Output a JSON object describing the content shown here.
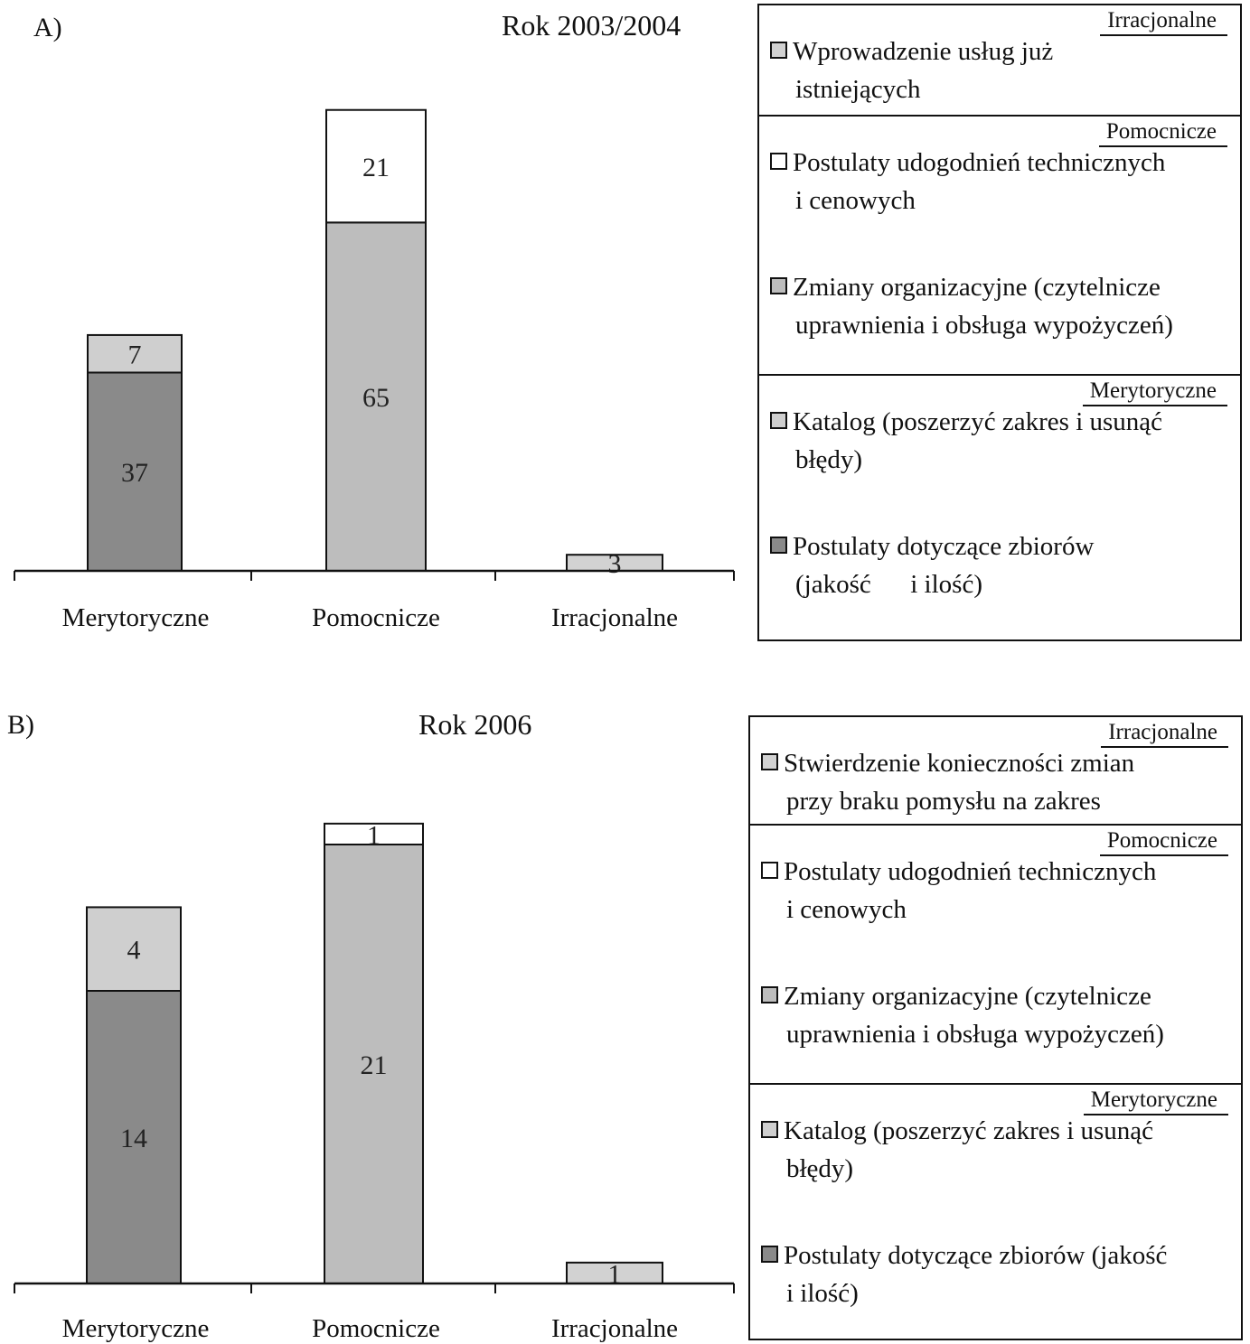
{
  "chart_data": [
    {
      "type": "bar",
      "stacked": true,
      "panel_label": "A)",
      "title": "Rok 2003/2004",
      "categories": [
        "Merytoryczne",
        "Pomocnicze",
        "Irracjonalne"
      ],
      "ylim": [
        0,
        90
      ],
      "grid": false,
      "legend_position": "right",
      "series": [
        {
          "name": "Postulaty dotyczące zbiorów (jakość i ilość)",
          "color": "#8a8a8a",
          "values": [
            37,
            null,
            null
          ]
        },
        {
          "name": "Katalog (poszerzyć zakres i usunąć błędy)",
          "color": "#cfcfcf",
          "values": [
            7,
            null,
            null
          ]
        },
        {
          "name": "Zmiany organizacyjne (czytelnicze uprawnienia i obsługa wypożyczeń)",
          "color": "#bdbdbd",
          "values": [
            null,
            65,
            null
          ]
        },
        {
          "name": "Postulaty udogodnień technicznych i cenowych",
          "color": "#ffffff",
          "values": [
            null,
            21,
            null
          ]
        },
        {
          "name": "Wprowadzenie usług już istniejących",
          "color": "#d2d2d2",
          "values": [
            null,
            null,
            3
          ]
        }
      ],
      "legend": [
        {
          "header": "Irracjonalne",
          "items": [
            {
              "lines": [
                "Wprowadzenie usług już",
                "istniejących"
              ],
              "color": "#d2d2d2"
            }
          ]
        },
        {
          "header": "Pomocnicze",
          "items": [
            {
              "lines": [
                "Postulaty udogodnień technicznych",
                "i cenowych"
              ],
              "color": "#ffffff"
            },
            {
              "lines": [
                "Zmiany organizacyjne (czytelnicze",
                "uprawnienia i obsługa wypożyczeń)"
              ],
              "color": "#bdbdbd"
            }
          ]
        },
        {
          "header": "Merytoryczne",
          "items": [
            {
              "lines": [
                "Katalog (poszerzyć zakres i usunąć",
                "błędy)"
              ],
              "color": "#cfcfcf"
            },
            {
              "lines": [
                "Postulaty dotyczące zbiorów",
                "(jakość      i ilość)"
              ],
              "color": "#8a8a8a"
            }
          ]
        }
      ]
    },
    {
      "type": "bar",
      "stacked": true,
      "panel_label": "B)",
      "title": "Rok 2006",
      "categories": [
        "Merytoryczne",
        "Pomocnicze",
        "Irracjonalne"
      ],
      "ylim": [
        0,
        24.5
      ],
      "grid": false,
      "legend_position": "right",
      "series": [
        {
          "name": "Postulaty dotyczące zbiorów (jakość i ilość)",
          "color": "#8a8a8a",
          "values": [
            14,
            null,
            null
          ]
        },
        {
          "name": "Katalog (poszerzyć zakres i usunąć błędy)",
          "color": "#cfcfcf",
          "values": [
            4,
            null,
            null
          ]
        },
        {
          "name": "Zmiany organizacyjne (czytelnicze uprawnienia i obsługa wypożyczeń)",
          "color": "#bdbdbd",
          "values": [
            null,
            21,
            null
          ]
        },
        {
          "name": "Postulaty udogodnień technicznych i cenowych",
          "color": "#ffffff",
          "values": [
            null,
            1,
            null
          ]
        },
        {
          "name": "Stwierdzenie konieczności zmian przy braku pomysłu na zakres",
          "color": "#d2d2d2",
          "values": [
            null,
            null,
            1
          ]
        }
      ],
      "legend": [
        {
          "header": "Irracjonalne",
          "items": [
            {
              "lines": [
                "Stwierdzenie konieczności zmian",
                "przy braku pomysłu na zakres"
              ],
              "color": "#d2d2d2"
            }
          ]
        },
        {
          "header": "Pomocnicze",
          "items": [
            {
              "lines": [
                "Postulaty udogodnień technicznych",
                "i cenowych"
              ],
              "color": "#ffffff"
            },
            {
              "lines": [
                "Zmiany organizacyjne (czytelnicze",
                "uprawnienia i obsługa wypożyczeń)"
              ],
              "color": "#bdbdbd"
            }
          ]
        },
        {
          "header": "Merytoryczne",
          "items": [
            {
              "lines": [
                "Katalog (poszerzyć zakres i usunąć",
                "błędy)"
              ],
              "color": "#cfcfcf"
            },
            {
              "lines": [
                "Postulaty dotyczące zbiorów (jakość",
                "i ilość)"
              ],
              "color": "#8a8a8a"
            }
          ]
        }
      ]
    }
  ]
}
